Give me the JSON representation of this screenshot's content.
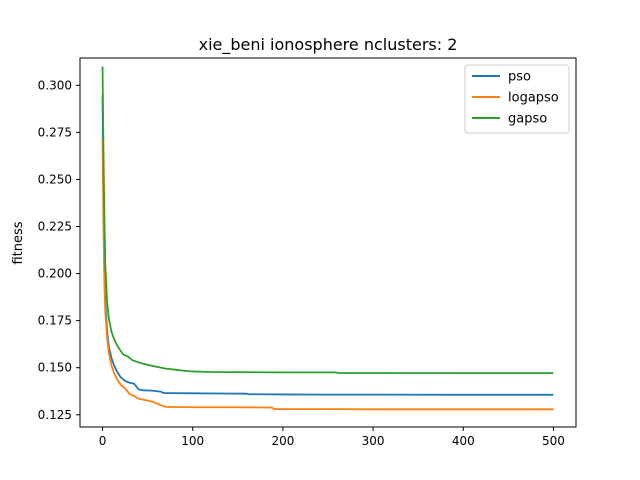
{
  "chart_data": {
    "type": "line",
    "title": "xie_beni ionosphere nclusters: 2",
    "xlabel": "",
    "ylabel": "fitness",
    "xlim": [
      -25,
      525
    ],
    "ylim": [
      0.1185,
      0.3145
    ],
    "xticks": [
      0,
      100,
      200,
      300,
      400,
      500
    ],
    "yticks": [
      0.125,
      0.15,
      0.175,
      0.2,
      0.225,
      0.25,
      0.275,
      0.3
    ],
    "ytick_labels": [
      "0.125",
      "0.150",
      "0.175",
      "0.200",
      "0.225",
      "0.250",
      "0.275",
      "0.300"
    ],
    "legend_position": "top-right",
    "grid": false,
    "series": [
      {
        "name": "pso",
        "color": "#1f77b4",
        "points": [
          [
            0,
            0.295
          ],
          [
            1,
            0.24
          ],
          [
            2,
            0.205
          ],
          [
            3,
            0.185
          ],
          [
            5,
            0.17
          ],
          [
            7,
            0.161
          ],
          [
            10,
            0.155
          ],
          [
            13,
            0.151
          ],
          [
            16,
            0.148
          ],
          [
            20,
            0.145
          ],
          [
            25,
            0.143
          ],
          [
            30,
            0.142
          ],
          [
            35,
            0.1415
          ],
          [
            40,
            0.1385
          ],
          [
            45,
            0.138
          ],
          [
            55,
            0.1378
          ],
          [
            65,
            0.1372
          ],
          [
            68,
            0.1365
          ],
          [
            80,
            0.1365
          ],
          [
            100,
            0.1364
          ],
          [
            130,
            0.1363
          ],
          [
            160,
            0.1362
          ],
          [
            162,
            0.1359
          ],
          [
            200,
            0.1358
          ],
          [
            250,
            0.1357
          ],
          [
            300,
            0.1357
          ],
          [
            400,
            0.1356
          ],
          [
            500,
            0.1356
          ]
        ]
      },
      {
        "name": "logapso",
        "color": "#ff7f0e",
        "points": [
          [
            0,
            0.272
          ],
          [
            1,
            0.225
          ],
          [
            2,
            0.195
          ],
          [
            3,
            0.18
          ],
          [
            5,
            0.166
          ],
          [
            7,
            0.158
          ],
          [
            10,
            0.151
          ],
          [
            13,
            0.147
          ],
          [
            16,
            0.144
          ],
          [
            20,
            0.141
          ],
          [
            25,
            0.139
          ],
          [
            30,
            0.136
          ],
          [
            35,
            0.135
          ],
          [
            40,
            0.1335
          ],
          [
            50,
            0.1325
          ],
          [
            55,
            0.132
          ],
          [
            60,
            0.131
          ],
          [
            65,
            0.13
          ],
          [
            70,
            0.1292
          ],
          [
            100,
            0.129
          ],
          [
            150,
            0.129
          ],
          [
            188,
            0.1288
          ],
          [
            190,
            0.128
          ],
          [
            250,
            0.128
          ],
          [
            300,
            0.1279
          ],
          [
            400,
            0.1279
          ],
          [
            500,
            0.1279
          ]
        ]
      },
      {
        "name": "gapso",
        "color": "#2ca02c",
        "points": [
          [
            0,
            0.31
          ],
          [
            1,
            0.265
          ],
          [
            2,
            0.23
          ],
          [
            3,
            0.205
          ],
          [
            5,
            0.185
          ],
          [
            7,
            0.176
          ],
          [
            10,
            0.169
          ],
          [
            13,
            0.165
          ],
          [
            16,
            0.162
          ],
          [
            20,
            0.159
          ],
          [
            23,
            0.157
          ],
          [
            28,
            0.156
          ],
          [
            33,
            0.154
          ],
          [
            40,
            0.1528
          ],
          [
            50,
            0.1515
          ],
          [
            60,
            0.1505
          ],
          [
            70,
            0.1495
          ],
          [
            80,
            0.149
          ],
          [
            90,
            0.1484
          ],
          [
            100,
            0.148
          ],
          [
            120,
            0.1477
          ],
          [
            150,
            0.1476
          ],
          [
            200,
            0.1475
          ],
          [
            258,
            0.1475
          ],
          [
            262,
            0.1472
          ],
          [
            300,
            0.1472
          ],
          [
            400,
            0.1471
          ],
          [
            500,
            0.1471
          ]
        ]
      }
    ]
  }
}
